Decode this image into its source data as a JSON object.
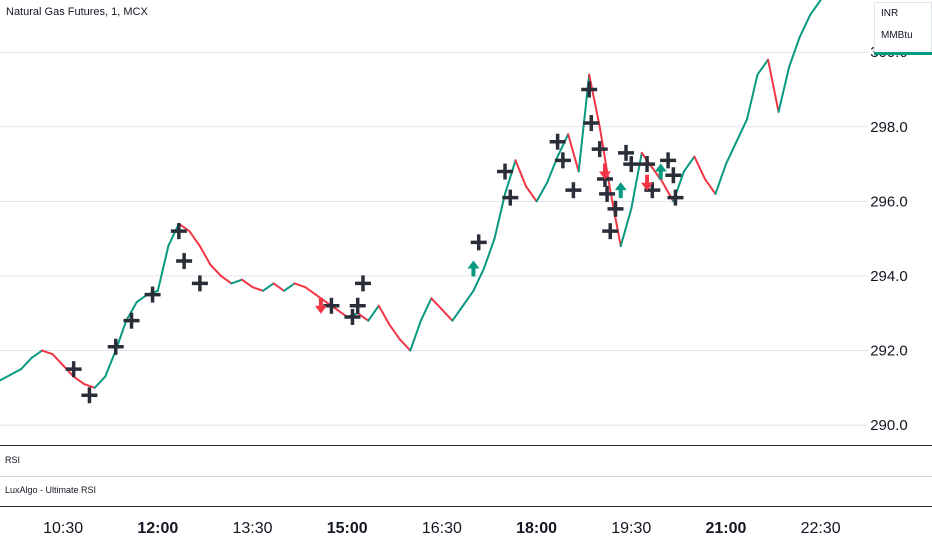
{
  "chart": {
    "title": "Natural Gas Futures, 1, MCX",
    "units": [
      "INR",
      "MMBtu"
    ],
    "panes": [
      "RSI",
      "LuxAlgo - Ultimate RSI"
    ],
    "colors": {
      "up": "#089981",
      "down": "#f23645",
      "accent": "#089981",
      "cross": "#2a2e39",
      "grid": "#e0e3eb"
    }
  },
  "chart_data": {
    "type": "line",
    "title": "Natural Gas Futures, 1, MCX",
    "xlabel": "",
    "ylabel": "",
    "ylim": [
      289.6,
      301.4
    ],
    "xlim": [
      "09:30",
      "23:15"
    ],
    "y_ticks": [
      "290.0",
      "292.0",
      "294.0",
      "296.0",
      "298.0",
      "300.0"
    ],
    "x_ticks": [
      {
        "label": "10:30",
        "bold": false
      },
      {
        "label": "12:00",
        "bold": true
      },
      {
        "label": "13:30",
        "bold": false
      },
      {
        "label": "15:00",
        "bold": true
      },
      {
        "label": "16:30",
        "bold": false
      },
      {
        "label": "18:00",
        "bold": true
      },
      {
        "label": "19:30",
        "bold": false
      },
      {
        "label": "21:00",
        "bold": true
      },
      {
        "label": "22:30",
        "bold": false
      }
    ],
    "grid": true,
    "series": [
      {
        "values": [
          [
            "09:30",
            291.2
          ],
          [
            "09:50",
            291.5
          ],
          [
            "10:00",
            291.8
          ],
          [
            "10:10",
            292.0
          ],
          [
            "10:20",
            291.9
          ],
          [
            "10:30",
            291.6
          ],
          [
            "10:40",
            291.3
          ],
          [
            "10:50",
            291.1
          ],
          [
            "11:00",
            291.0
          ],
          [
            "11:10",
            291.3
          ],
          [
            "11:20",
            292.0
          ],
          [
            "11:30",
            292.8
          ],
          [
            "11:40",
            293.3
          ],
          [
            "11:50",
            293.5
          ],
          [
            "12:00",
            293.6
          ],
          [
            "12:10",
            294.8
          ],
          [
            "12:20",
            295.4
          ],
          [
            "12:30",
            295.2
          ],
          [
            "12:40",
            294.8
          ],
          [
            "12:50",
            294.3
          ],
          [
            "13:00",
            294.0
          ],
          [
            "13:10",
            293.8
          ],
          [
            "13:20",
            293.9
          ],
          [
            "13:30",
            293.7
          ],
          [
            "13:40",
            293.6
          ],
          [
            "13:50",
            293.8
          ],
          [
            "14:00",
            293.6
          ],
          [
            "14:10",
            293.8
          ],
          [
            "14:20",
            293.7
          ],
          [
            "14:30",
            293.5
          ],
          [
            "14:40",
            293.3
          ],
          [
            "14:50",
            293.1
          ],
          [
            "15:00",
            292.9
          ],
          [
            "15:10",
            293.0
          ],
          [
            "15:20",
            292.8
          ],
          [
            "15:30",
            293.2
          ],
          [
            "15:40",
            292.7
          ],
          [
            "15:50",
            292.3
          ],
          [
            "16:00",
            292.0
          ],
          [
            "16:10",
            292.8
          ],
          [
            "16:20",
            293.4
          ],
          [
            "16:30",
            293.1
          ],
          [
            "16:40",
            292.8
          ],
          [
            "16:50",
            293.2
          ],
          [
            "17:00",
            293.6
          ],
          [
            "17:10",
            294.2
          ],
          [
            "17:20",
            295.0
          ],
          [
            "17:30",
            296.2
          ],
          [
            "17:40",
            297.1
          ],
          [
            "17:50",
            296.4
          ],
          [
            "18:00",
            296.0
          ],
          [
            "18:10",
            296.5
          ],
          [
            "18:20",
            297.2
          ],
          [
            "18:30",
            297.8
          ],
          [
            "18:40",
            296.8
          ],
          [
            "18:50",
            299.4
          ],
          [
            "19:00",
            298.0
          ],
          [
            "19:10",
            296.3
          ],
          [
            "19:20",
            294.8
          ],
          [
            "19:30",
            295.8
          ],
          [
            "19:40",
            297.3
          ],
          [
            "19:50",
            296.9
          ],
          [
            "20:00",
            296.5
          ],
          [
            "20:10",
            296.0
          ],
          [
            "20:20",
            296.8
          ],
          [
            "20:30",
            297.2
          ],
          [
            "20:40",
            296.6
          ],
          [
            "20:50",
            296.2
          ],
          [
            "21:00",
            297.0
          ],
          [
            "21:10",
            297.6
          ],
          [
            "21:20",
            298.2
          ],
          [
            "21:30",
            299.4
          ],
          [
            "21:40",
            299.8
          ],
          [
            "21:50",
            298.4
          ],
          [
            "22:00",
            299.6
          ],
          [
            "22:10",
            300.4
          ],
          [
            "22:20",
            301.0
          ],
          [
            "22:30",
            301.4
          ]
        ]
      }
    ],
    "crosses": [
      [
        "10:40",
        291.5
      ],
      [
        "10:55",
        290.8
      ],
      [
        "11:20",
        292.1
      ],
      [
        "11:35",
        292.8
      ],
      [
        "11:55",
        293.5
      ],
      [
        "12:20",
        295.2
      ],
      [
        "12:25",
        294.4
      ],
      [
        "12:40",
        293.8
      ],
      [
        "14:45",
        293.2
      ],
      [
        "15:05",
        292.9
      ],
      [
        "15:10",
        293.2
      ],
      [
        "15:15",
        293.8
      ],
      [
        "17:05",
        294.9
      ],
      [
        "17:30",
        296.8
      ],
      [
        "17:35",
        296.1
      ],
      [
        "18:20",
        297.6
      ],
      [
        "18:25",
        297.1
      ],
      [
        "18:35",
        296.3
      ],
      [
        "18:50",
        299.0
      ],
      [
        "18:52",
        298.1
      ],
      [
        "19:00",
        297.4
      ],
      [
        "19:05",
        296.6
      ],
      [
        "19:07",
        296.2
      ],
      [
        "19:10",
        295.2
      ],
      [
        "19:15",
        295.8
      ],
      [
        "19:25",
        297.3
      ],
      [
        "19:30",
        297.0
      ],
      [
        "19:45",
        297.0
      ],
      [
        "19:50",
        296.3
      ],
      [
        "20:05",
        297.1
      ],
      [
        "20:10",
        296.7
      ],
      [
        "20:12",
        296.1
      ]
    ],
    "signals": [
      {
        "x": "14:35",
        "y": 293.2,
        "dir": "down"
      },
      {
        "x": "17:00",
        "y": 294.2,
        "dir": "up"
      },
      {
        "x": "19:05",
        "y": 296.8,
        "dir": "down"
      },
      {
        "x": "19:20",
        "y": 296.3,
        "dir": "up"
      },
      {
        "x": "19:45",
        "y": 296.5,
        "dir": "down"
      },
      {
        "x": "19:58",
        "y": 296.8,
        "dir": "up"
      }
    ]
  }
}
